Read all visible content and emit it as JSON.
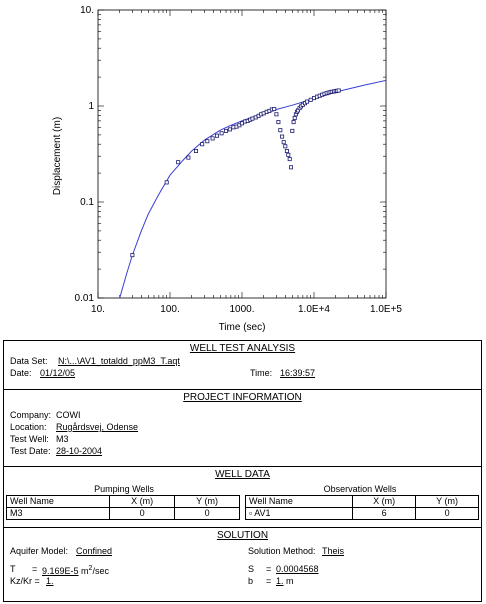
{
  "chart_data": {
    "type": "scatter",
    "xscale": "log",
    "yscale": "log",
    "xlim": [
      10,
      100000
    ],
    "ylim": [
      0.01,
      10
    ],
    "xlabel": "Time (sec)",
    "ylabel": "Displacement (m)",
    "x_ticks": [
      "10.",
      "100.",
      "1000.",
      "1.0E+4",
      "1.0E+5"
    ],
    "y_ticks": [
      "0.01",
      "0.1",
      "1",
      "10."
    ],
    "series": [
      {
        "kind": "markers",
        "x": [
          30,
          90,
          130,
          180,
          230,
          280,
          330,
          390,
          450,
          520,
          600,
          680,
          760,
          840,
          920,
          1000,
          1100,
          1200,
          1300,
          1400,
          1550,
          1700,
          1850,
          2000,
          2200,
          2400,
          2600,
          2800,
          3000,
          3200,
          3400,
          3600,
          3800,
          4000,
          4200,
          4400,
          4600,
          4800,
          5000,
          5200,
          5400,
          5600,
          5800,
          6000,
          6300,
          6600,
          7000,
          7500,
          8000,
          9000,
          10000,
          11000,
          12000,
          13000,
          14000,
          15000,
          16000,
          17000,
          18000,
          19000,
          20000,
          21000,
          22000
        ],
        "y": [
          0.028,
          0.16,
          0.26,
          0.29,
          0.34,
          0.4,
          0.43,
          0.46,
          0.49,
          0.52,
          0.55,
          0.57,
          0.6,
          0.61,
          0.63,
          0.66,
          0.69,
          0.7,
          0.72,
          0.74,
          0.76,
          0.79,
          0.82,
          0.84,
          0.87,
          0.89,
          0.92,
          0.93,
          0.82,
          0.68,
          0.56,
          0.48,
          0.42,
          0.38,
          0.34,
          0.31,
          0.28,
          0.23,
          0.55,
          0.68,
          0.75,
          0.82,
          0.87,
          0.9,
          0.95,
          0.99,
          1.03,
          1.07,
          1.11,
          1.16,
          1.21,
          1.25,
          1.28,
          1.31,
          1.34,
          1.36,
          1.38,
          1.4,
          1.41,
          1.42,
          1.43,
          1.44,
          1.45
        ]
      },
      {
        "kind": "line",
        "x": [
          20,
          25,
          30,
          40,
          50,
          70,
          100,
          150,
          200,
          300,
          500,
          700,
          1000,
          1500,
          2000,
          3000,
          5000,
          7000,
          10000,
          20000,
          50000,
          100000
        ],
        "y": [
          0.01,
          0.018,
          0.028,
          0.05,
          0.075,
          0.12,
          0.19,
          0.27,
          0.34,
          0.44,
          0.56,
          0.63,
          0.7,
          0.78,
          0.84,
          0.92,
          1.02,
          1.1,
          1.2,
          1.4,
          1.65,
          1.85
        ]
      }
    ]
  },
  "report": {
    "title": "WELL TEST ANALYSIS",
    "data_set_label": "Data Set:",
    "data_set_value": "N:\\...\\AV1_totaldd_ppM3_T.aqt",
    "date_label": "Date:",
    "date_value": "01/12/05",
    "time_label": "Time:",
    "time_value": "16:39:57",
    "project_title": "PROJECT INFORMATION",
    "company_label": "Company:",
    "company_value": "COWI",
    "location_label": "Location:",
    "location_value": "Rugårdsvej, Odense",
    "test_well_label": "Test Well:",
    "test_well_value": "M3",
    "test_date_label": "Test Date:",
    "test_date_value": "28-10-2004",
    "well_data_title": "WELL DATA",
    "pumping_title": "Pumping Wells",
    "observation_title": "Observation Wells",
    "headers": [
      "Well Name",
      "X (m)",
      "Y (m)"
    ],
    "pumping_row": [
      "M3",
      "0",
      "0"
    ],
    "observation_row": [
      "AV1",
      "6",
      "0"
    ],
    "obs_marker": "▫",
    "solution_title": "SOLUTION",
    "aquifer_model_label": "Aquifer Model:",
    "aquifer_model_value": "Confined",
    "solution_method_label": "Solution Method:",
    "solution_method_value": "Theis",
    "T_label": "T",
    "eq": "=",
    "T_value": "9.169E-5",
    "T_unit": " m",
    "T_unit_exp": "2",
    "T_unit_tail": "/sec",
    "S_label": "S",
    "S_value": "0.0004568",
    "kz_label": "Kz/Kr =",
    "kz_value": "1.",
    "b_label": "b",
    "b_value": "1.",
    "b_unit": " m"
  },
  "colors": {
    "curve": "#3a3fd0",
    "marker": "#1a1a6e"
  }
}
